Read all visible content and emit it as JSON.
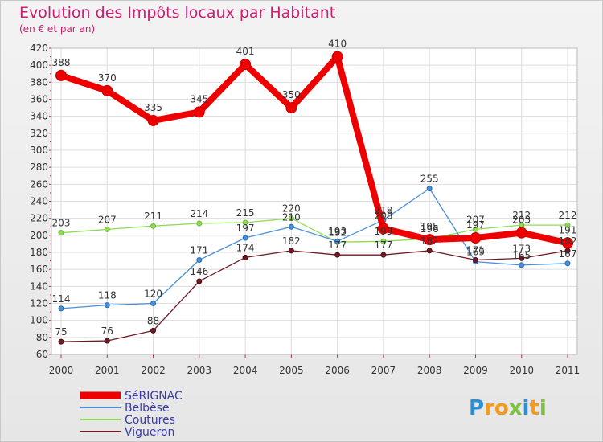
{
  "chart_data": {
    "type": "line",
    "title": "Evolution des Impôts locaux par Habitant",
    "subtitle": "(en € et par an)",
    "xlabel": "",
    "ylabel": "",
    "categories": [
      "2000",
      "2001",
      "2002",
      "2003",
      "2004",
      "2005",
      "2006",
      "2007",
      "2008",
      "2009",
      "2010",
      "2011"
    ],
    "ylim": [
      60,
      420
    ],
    "yticks": [
      60,
      80,
      100,
      120,
      140,
      160,
      180,
      200,
      220,
      240,
      260,
      280,
      300,
      320,
      340,
      360,
      380,
      400,
      420
    ],
    "grid": true,
    "legend_position": "bottom-left",
    "series": [
      {
        "name": "SéRIGNAC",
        "color": "#ee0000",
        "values": [
          388,
          370,
          335,
          345,
          401,
          350,
          410,
          208,
          195,
          197,
          203,
          191
        ]
      },
      {
        "name": "Belbèse",
        "color": "#4a90d9",
        "values": [
          114,
          118,
          120,
          171,
          197,
          210,
          193,
          218,
          255,
          169,
          165,
          167
        ]
      },
      {
        "name": "Coutures",
        "color": "#8fdb56",
        "values": [
          203,
          207,
          211,
          214,
          215,
          220,
          192,
          193,
          196,
          207,
          212,
          212
        ]
      },
      {
        "name": "Vigueron",
        "color": "#6e1a24",
        "values": [
          75,
          76,
          88,
          146,
          174,
          182,
          177,
          177,
          182,
          171,
          173,
          182
        ]
      }
    ]
  },
  "brand": {
    "letters": [
      "P",
      "r",
      "o",
      "x",
      "i",
      "t",
      "i"
    ],
    "colors": [
      "#2b8fd6",
      "#f29a1f",
      "#f29a1f",
      "#7cc242",
      "#2b8fd6",
      "#f29a1f",
      "#7cc242"
    ]
  }
}
